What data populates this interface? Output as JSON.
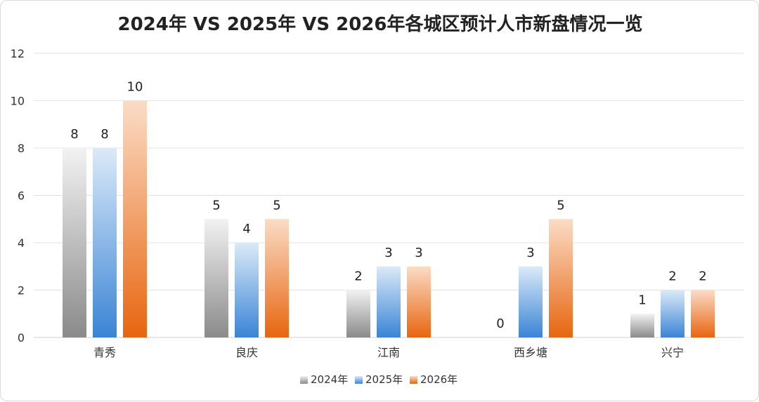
{
  "chart_data": {
    "type": "bar",
    "title": "2024年 VS 2025年 VS 2026年各城区预计人市新盘情况一览",
    "xlabel": "",
    "ylabel": "",
    "ylim": [
      0,
      12
    ],
    "yticks": [
      0,
      2,
      4,
      6,
      8,
      10,
      12
    ],
    "grid": true,
    "legend_position": "bottom",
    "categories": [
      "青秀",
      "良庆",
      "江南",
      "西乡塘",
      "兴宁"
    ],
    "series": [
      {
        "name": "2024年",
        "values": [
          8,
          5,
          2,
          0,
          1
        ],
        "color": "#8c8c8c"
      },
      {
        "name": "2025年",
        "values": [
          8,
          4,
          3,
          3,
          2
        ],
        "color": "#3a84d6"
      },
      {
        "name": "2026年",
        "values": [
          10,
          5,
          3,
          5,
          2
        ],
        "color": "#ea6a16"
      }
    ]
  }
}
